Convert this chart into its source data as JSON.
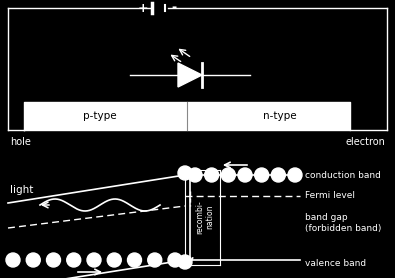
{
  "bg_color": "#000000",
  "fg_color": "#ffffff",
  "figsize": [
    3.95,
    2.78
  ],
  "dpi": 100,
  "ptype_label": "p-type",
  "ntype_label": "n-type",
  "hole_label": "hole",
  "electron_label": "electron",
  "light_label": "light",
  "conduction_label": "conduction band",
  "fermi_label": "Fermi level",
  "bandgap_label": "band gap\n(forbidden band)",
  "valence_label": "valence band",
  "recombination_label": "recombi-\nnation"
}
